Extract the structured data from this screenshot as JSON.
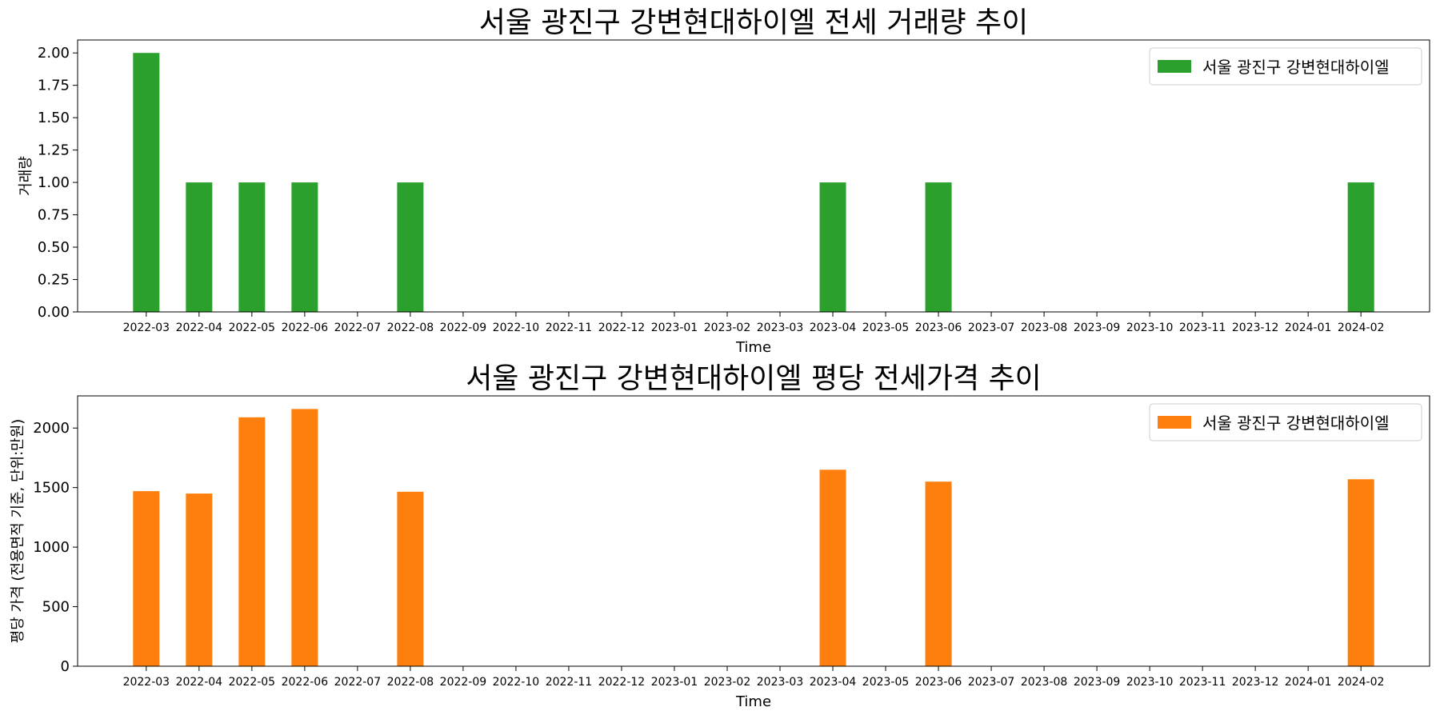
{
  "chart_data": [
    {
      "type": "bar",
      "title": "서울 광진구 강변현대하이엘 전세 거래량 추이",
      "xlabel": "Time",
      "ylabel": "거래량",
      "categories": [
        "2022-03",
        "2022-04",
        "2022-05",
        "2022-06",
        "2022-07",
        "2022-08",
        "2022-09",
        "2022-10",
        "2022-11",
        "2022-12",
        "2023-01",
        "2023-02",
        "2023-03",
        "2023-04",
        "2023-05",
        "2023-06",
        "2023-07",
        "2023-08",
        "2023-09",
        "2023-10",
        "2023-11",
        "2023-12",
        "2024-01",
        "2024-02"
      ],
      "series": [
        {
          "name": "서울 광진구 강변현대하이엘",
          "color": "#2ca02c",
          "values": [
            2,
            1,
            1,
            1,
            0,
            1,
            0,
            0,
            0,
            0,
            0,
            0,
            0,
            1,
            0,
            1,
            0,
            0,
            0,
            0,
            0,
            0,
            0,
            1
          ]
        }
      ],
      "ylim": [
        0,
        2.1
      ],
      "yticks": [
        0,
        0.25,
        0.5,
        0.75,
        1.0,
        1.25,
        1.5,
        1.75,
        2.0
      ],
      "ytick_labels": [
        "0.00",
        "0.25",
        "0.50",
        "0.75",
        "1.00",
        "1.25",
        "1.50",
        "1.75",
        "2.00"
      ],
      "legend": "top-right",
      "grid": false
    },
    {
      "type": "bar",
      "title": "서울 광진구 강변현대하이엘 평당 전세가격 추이",
      "xlabel": "Time",
      "ylabel": "평당 가격 (전용면적 기준, 단위:만원)",
      "categories": [
        "2022-03",
        "2022-04",
        "2022-05",
        "2022-06",
        "2022-07",
        "2022-08",
        "2022-09",
        "2022-10",
        "2022-11",
        "2022-12",
        "2023-01",
        "2023-02",
        "2023-03",
        "2023-04",
        "2023-05",
        "2023-06",
        "2023-07",
        "2023-08",
        "2023-09",
        "2023-10",
        "2023-11",
        "2023-12",
        "2024-01",
        "2024-02"
      ],
      "series": [
        {
          "name": "서울 광진구 강변현대하이엘",
          "color": "#ff7f0e",
          "values": [
            1470,
            1450,
            2090,
            2160,
            0,
            1465,
            0,
            0,
            0,
            0,
            0,
            0,
            0,
            1650,
            0,
            1550,
            0,
            0,
            0,
            0,
            0,
            0,
            0,
            1570
          ]
        }
      ],
      "ylim": [
        0,
        2270
      ],
      "yticks": [
        0,
        500,
        1000,
        1500,
        2000
      ],
      "ytick_labels": [
        "0",
        "500",
        "1000",
        "1500",
        "2000"
      ],
      "legend": "top-right",
      "grid": false
    }
  ]
}
